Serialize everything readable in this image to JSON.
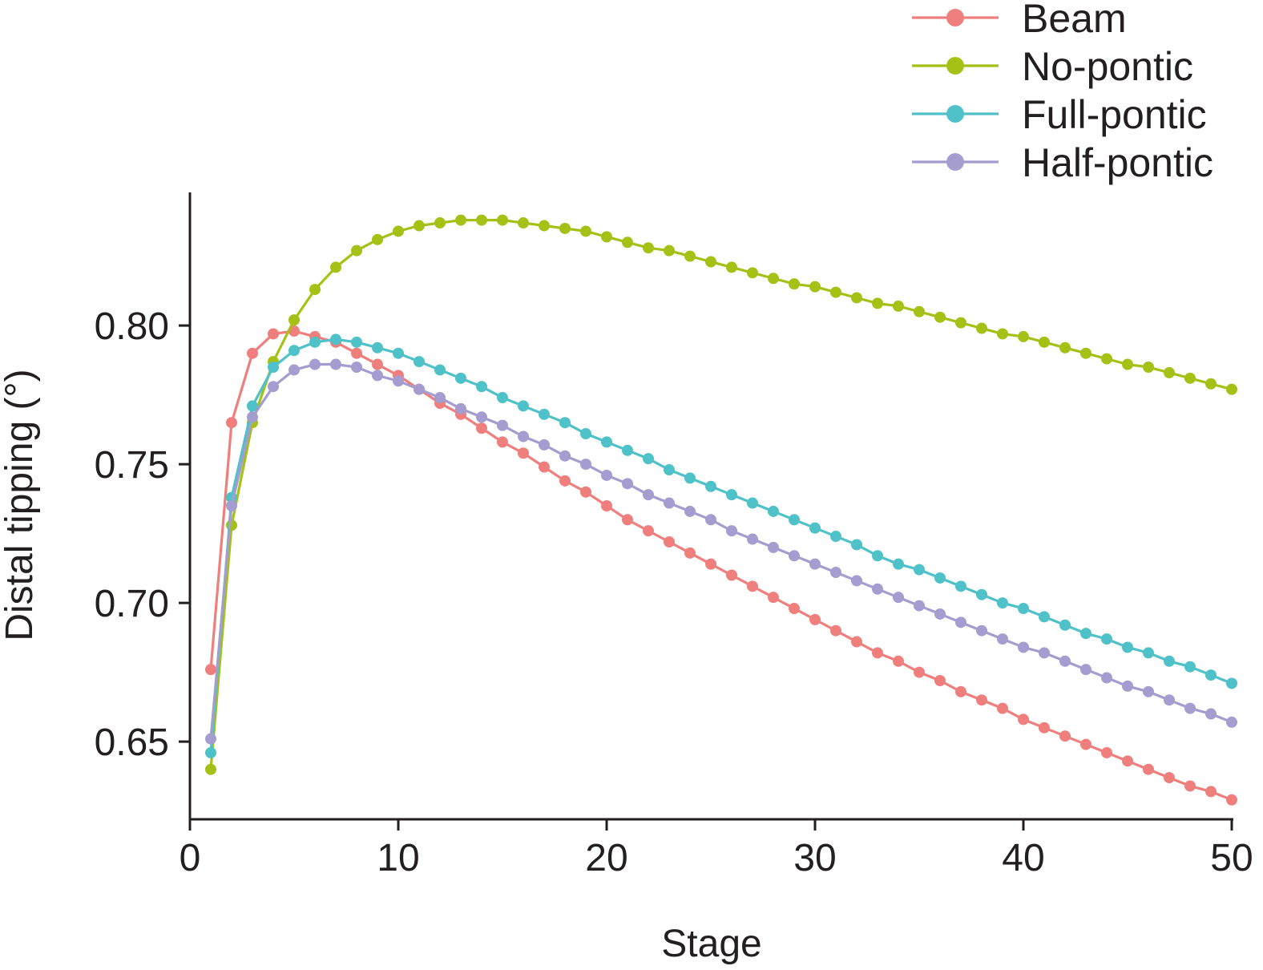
{
  "chart_data": {
    "type": "line",
    "title": "",
    "xlabel": "Stage",
    "ylabel": "Distal tipping (°)",
    "xlim": [
      0,
      50
    ],
    "ylim": [
      0.622,
      0.848
    ],
    "xticks": [
      0,
      10,
      20,
      30,
      40,
      50
    ],
    "xtick_labels": [
      "0",
      "10",
      "20",
      "30",
      "40",
      "50"
    ],
    "yticks": [
      0.65,
      0.7,
      0.75,
      0.8
    ],
    "ytick_labels": [
      "0.65",
      "0.70",
      "0.75",
      "0.80"
    ],
    "grid": false,
    "legend_position": "top-right",
    "x": [
      1,
      2,
      3,
      4,
      5,
      6,
      7,
      8,
      9,
      10,
      11,
      12,
      13,
      14,
      15,
      16,
      17,
      18,
      19,
      20,
      21,
      22,
      23,
      24,
      25,
      26,
      27,
      28,
      29,
      30,
      31,
      32,
      33,
      34,
      35,
      36,
      37,
      38,
      39,
      40,
      41,
      42,
      43,
      44,
      45,
      46,
      47,
      48,
      49,
      50
    ],
    "series": [
      {
        "name": "Beam",
        "color": "#ef7f7d",
        "values": [
          0.676,
          0.765,
          0.79,
          0.797,
          0.798,
          0.796,
          0.794,
          0.79,
          0.786,
          0.782,
          0.777,
          0.772,
          0.768,
          0.763,
          0.758,
          0.754,
          0.749,
          0.744,
          0.74,
          0.735,
          0.73,
          0.726,
          0.722,
          0.718,
          0.714,
          0.71,
          0.706,
          0.702,
          0.698,
          0.694,
          0.69,
          0.686,
          0.682,
          0.679,
          0.675,
          0.672,
          0.668,
          0.665,
          0.662,
          0.658,
          0.655,
          0.652,
          0.649,
          0.646,
          0.643,
          0.64,
          0.637,
          0.634,
          0.632,
          0.629
        ]
      },
      {
        "name": "No-pontic",
        "color": "#a5c115",
        "values": [
          0.64,
          0.728,
          0.765,
          0.787,
          0.802,
          0.813,
          0.821,
          0.827,
          0.831,
          0.834,
          0.836,
          0.837,
          0.838,
          0.838,
          0.838,
          0.837,
          0.836,
          0.835,
          0.834,
          0.832,
          0.83,
          0.828,
          0.827,
          0.825,
          0.823,
          0.821,
          0.819,
          0.817,
          0.815,
          0.814,
          0.812,
          0.81,
          0.808,
          0.807,
          0.805,
          0.803,
          0.801,
          0.799,
          0.797,
          0.796,
          0.794,
          0.792,
          0.79,
          0.788,
          0.786,
          0.785,
          0.783,
          0.781,
          0.779,
          0.777
        ]
      },
      {
        "name": "Full-pontic",
        "color": "#4ec1c9",
        "values": [
          0.646,
          0.738,
          0.771,
          0.785,
          0.791,
          0.794,
          0.795,
          0.794,
          0.792,
          0.79,
          0.787,
          0.784,
          0.781,
          0.778,
          0.774,
          0.771,
          0.768,
          0.765,
          0.761,
          0.758,
          0.755,
          0.752,
          0.748,
          0.745,
          0.742,
          0.739,
          0.736,
          0.733,
          0.73,
          0.727,
          0.724,
          0.721,
          0.717,
          0.714,
          0.712,
          0.709,
          0.706,
          0.703,
          0.7,
          0.698,
          0.695,
          0.692,
          0.689,
          0.687,
          0.684,
          0.682,
          0.679,
          0.677,
          0.674,
          0.671
        ]
      },
      {
        "name": "Half-pontic",
        "color": "#a59ccf",
        "values": [
          0.651,
          0.735,
          0.767,
          0.778,
          0.784,
          0.786,
          0.786,
          0.785,
          0.782,
          0.78,
          0.777,
          0.774,
          0.77,
          0.767,
          0.764,
          0.76,
          0.757,
          0.753,
          0.75,
          0.746,
          0.743,
          0.739,
          0.736,
          0.733,
          0.73,
          0.726,
          0.723,
          0.72,
          0.717,
          0.714,
          0.711,
          0.708,
          0.705,
          0.702,
          0.699,
          0.696,
          0.693,
          0.69,
          0.687,
          0.684,
          0.682,
          0.679,
          0.676,
          0.673,
          0.67,
          0.668,
          0.665,
          0.662,
          0.66,
          0.657
        ]
      }
    ]
  }
}
